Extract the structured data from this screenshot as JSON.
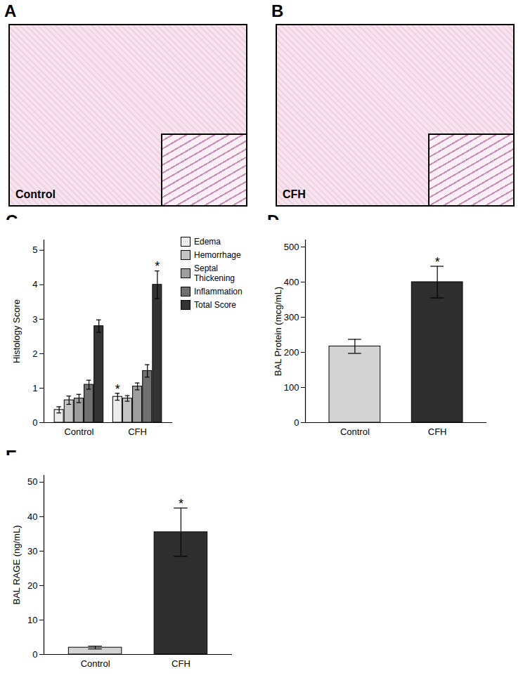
{
  "images": [
    {
      "panel": "A",
      "label": "Control"
    },
    {
      "panel": "B",
      "label": "CFH"
    }
  ],
  "chart_data": [
    {
      "panel": "C",
      "type": "bar",
      "categories": [
        "Control",
        "CFH"
      ],
      "y_label": "Histology Score",
      "ylim": [
        0,
        5.3
      ],
      "yticks": [
        0,
        1,
        2,
        3,
        4,
        5
      ],
      "legend": "top-right",
      "series": [
        {
          "name": "Edema",
          "color": "#ececec",
          "values": [
            0.37,
            0.75
          ],
          "errors": [
            0.09,
            0.1
          ]
        },
        {
          "name": "Hemorrhage",
          "color": "#c4c4c4",
          "values": [
            0.65,
            0.7
          ],
          "errors": [
            0.12,
            0.08
          ]
        },
        {
          "name": "Septal Thickening",
          "color": "#9e9e9e",
          "values": [
            0.7,
            1.05
          ],
          "errors": [
            0.12,
            0.1
          ]
        },
        {
          "name": "Inflammation",
          "color": "#707070",
          "values": [
            1.1,
            1.5
          ],
          "errors": [
            0.13,
            0.18
          ]
        },
        {
          "name": "Total Score",
          "color": "#333333",
          "values": [
            2.8,
            4.0
          ],
          "errors": [
            0.18,
            0.4
          ]
        }
      ],
      "annotations": [
        {
          "category": "CFH",
          "series": "Edema",
          "text": "*"
        },
        {
          "category": "CFH",
          "series": "Total Score",
          "text": "*"
        }
      ]
    },
    {
      "panel": "D",
      "type": "bar",
      "categories": [
        "Control",
        "CFH"
      ],
      "values": [
        217,
        400
      ],
      "errors": [
        20,
        45
      ],
      "colors": [
        "#d3d3d3",
        "#2e2e2e"
      ],
      "y_label": "BAL Protein (mcg/mL)",
      "ylim": [
        0,
        520
      ],
      "yticks": [
        0,
        100,
        200,
        300,
        400,
        500
      ],
      "annotations": [
        {
          "category": "CFH",
          "text": "*"
        }
      ]
    },
    {
      "panel": "E",
      "type": "bar",
      "categories": [
        "Control",
        "CFH"
      ],
      "values": [
        2,
        35.5
      ],
      "errors": [
        0.4,
        7
      ],
      "colors": [
        "#d3d3d3",
        "#2e2e2e"
      ],
      "y_label": "BAL RAGE (ng/mL)",
      "ylim": [
        0,
        52
      ],
      "yticks": [
        0,
        10,
        20,
        30,
        40,
        50
      ],
      "annotations": [
        {
          "category": "CFH",
          "text": "*"
        }
      ]
    }
  ]
}
